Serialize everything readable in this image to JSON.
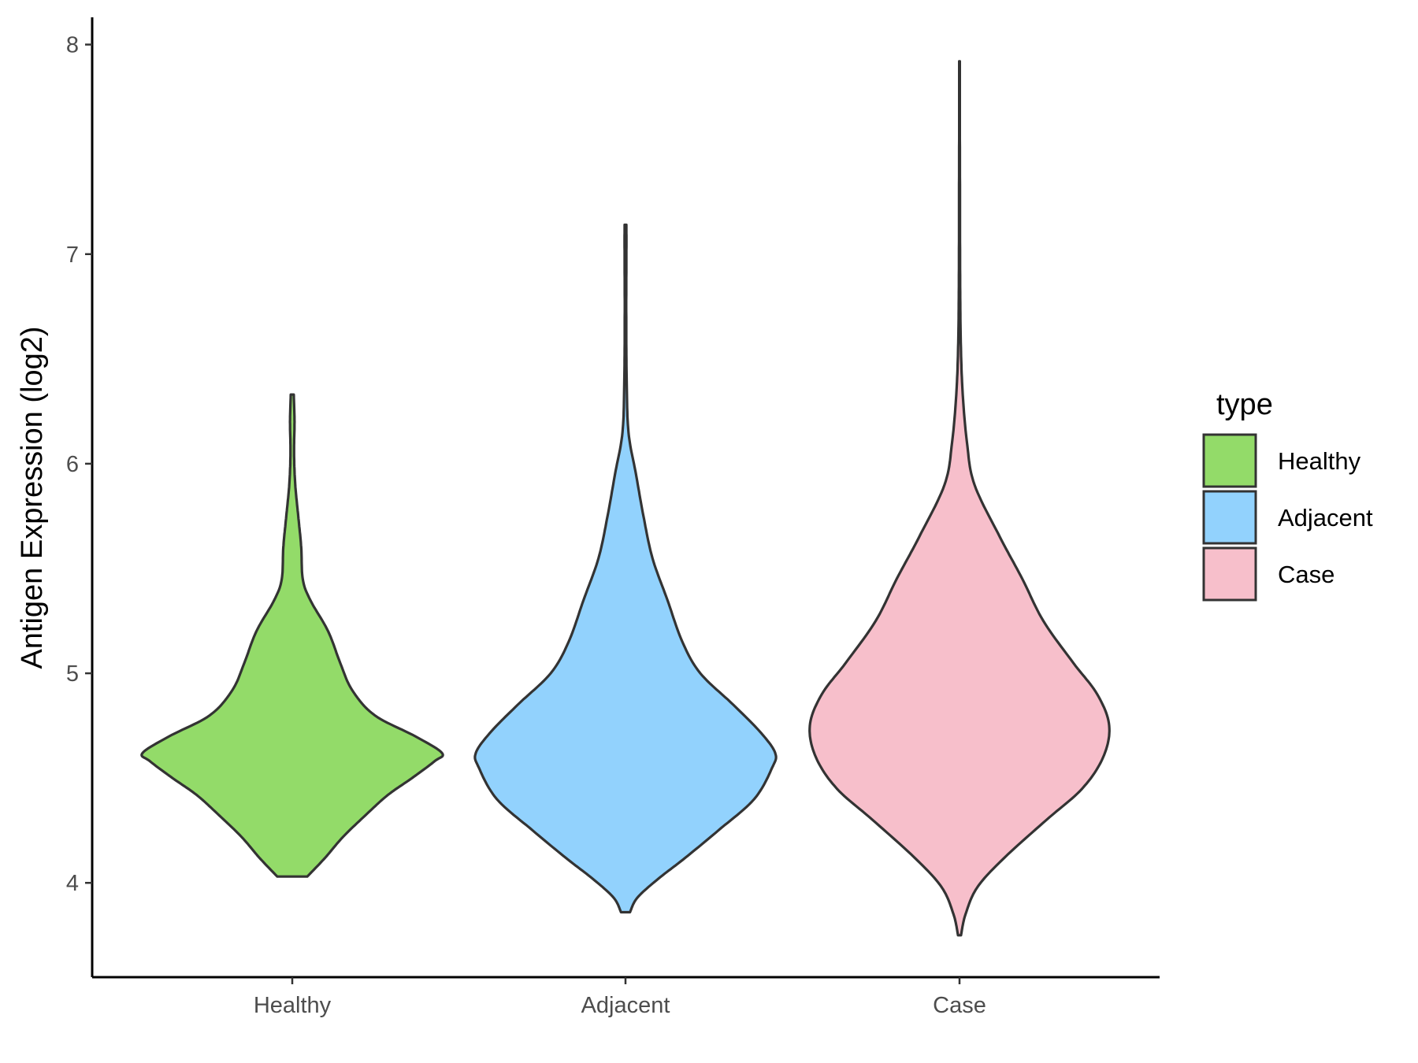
{
  "chart_data": {
    "type": "violin",
    "title": "",
    "xlabel": "",
    "ylabel": "Antigen Expression (log2)",
    "ylim": [
      3.55,
      8.13
    ],
    "yticks": [
      "4",
      "5",
      "6",
      "7",
      "8"
    ],
    "categories": [
      "Healthy",
      "Adjacent",
      "Case"
    ],
    "legend": {
      "title": "type",
      "position": "right",
      "entries": [
        "Healthy",
        "Adjacent",
        "Case"
      ]
    },
    "grid": false,
    "series": [
      {
        "name": "Healthy",
        "color": "#93db69",
        "min": 4.03,
        "max": 6.33,
        "profile": [
          [
            4.03,
            0.1
          ],
          [
            4.12,
            0.22
          ],
          [
            4.22,
            0.34
          ],
          [
            4.33,
            0.5
          ],
          [
            4.42,
            0.64
          ],
          [
            4.5,
            0.8
          ],
          [
            4.58,
            0.95
          ],
          [
            4.62,
            1.0
          ],
          [
            4.7,
            0.82
          ],
          [
            4.8,
            0.55
          ],
          [
            4.92,
            0.4
          ],
          [
            5.05,
            0.32
          ],
          [
            5.2,
            0.24
          ],
          [
            5.35,
            0.12
          ],
          [
            5.45,
            0.07
          ],
          [
            5.6,
            0.06
          ],
          [
            5.75,
            0.04
          ],
          [
            5.9,
            0.02
          ],
          [
            6.05,
            0.012
          ],
          [
            6.2,
            0.015
          ],
          [
            6.33,
            0.01
          ]
        ]
      },
      {
        "name": "Adjacent",
        "color": "#92d2fd",
        "min": 3.86,
        "max": 7.14,
        "profile": [
          [
            3.86,
            0.03
          ],
          [
            3.93,
            0.08
          ],
          [
            4.02,
            0.22
          ],
          [
            4.12,
            0.4
          ],
          [
            4.25,
            0.62
          ],
          [
            4.4,
            0.86
          ],
          [
            4.55,
            0.98
          ],
          [
            4.62,
            1.0
          ],
          [
            4.72,
            0.9
          ],
          [
            4.85,
            0.72
          ],
          [
            5.0,
            0.5
          ],
          [
            5.15,
            0.38
          ],
          [
            5.35,
            0.28
          ],
          [
            5.55,
            0.18
          ],
          [
            5.75,
            0.12
          ],
          [
            5.95,
            0.07
          ],
          [
            6.15,
            0.02
          ],
          [
            6.4,
            0.008
          ],
          [
            6.7,
            0.005
          ],
          [
            7.0,
            0.006
          ],
          [
            7.14,
            0.006
          ]
        ]
      },
      {
        "name": "Case",
        "color": "#f7bfcb",
        "min": 3.75,
        "max": 7.92,
        "profile": [
          [
            3.75,
            0.01
          ],
          [
            3.85,
            0.04
          ],
          [
            3.98,
            0.12
          ],
          [
            4.12,
            0.3
          ],
          [
            4.3,
            0.58
          ],
          [
            4.45,
            0.82
          ],
          [
            4.6,
            0.96
          ],
          [
            4.75,
            1.0
          ],
          [
            4.9,
            0.92
          ],
          [
            5.05,
            0.76
          ],
          [
            5.25,
            0.56
          ],
          [
            5.45,
            0.42
          ],
          [
            5.65,
            0.27
          ],
          [
            5.9,
            0.1
          ],
          [
            6.1,
            0.05
          ],
          [
            6.35,
            0.02
          ],
          [
            6.6,
            0.008
          ],
          [
            6.9,
            0.004
          ],
          [
            7.3,
            0.003
          ],
          [
            7.7,
            0.002
          ],
          [
            7.92,
            0.002
          ]
        ]
      }
    ]
  }
}
